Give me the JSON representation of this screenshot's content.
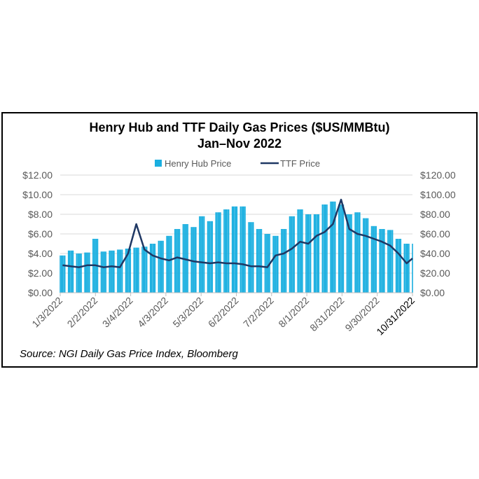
{
  "chart_data": {
    "type": "bar+line",
    "title": "Henry Hub and TTF Daily Gas Prices ($US/MMBtu)",
    "subtitle": "Jan–Nov 2022",
    "source": "Source: NGI Daily Gas Price Index, Bloomberg",
    "legend": {
      "placement": "top",
      "entries": [
        "Henry Hub Price",
        "TTF Price"
      ]
    },
    "colors": {
      "henry_hub": "#1aafe0",
      "ttf": "#1f3864",
      "grid": "#d9d9d9"
    },
    "left_axis": {
      "ylim": [
        0,
        12
      ],
      "ticks": [
        "$0.00",
        "$2.00",
        "$4.00",
        "$6.00",
        "$8.00",
        "$10.00",
        "$12.00"
      ]
    },
    "right_axis": {
      "ylim": [
        0,
        120
      ],
      "ticks": [
        "$0.00",
        "$20.00",
        "$40.00",
        "$60.00",
        "$80.00",
        "$100.00",
        "$120.00"
      ]
    },
    "x_ticks": [
      "1/3/2022",
      "2/2/2022",
      "3/4/2022",
      "4/3/2022",
      "5/3/2022",
      "6/2/2022",
      "7/2/2022",
      "8/1/2022",
      "8/31/2022",
      "9/30/2022",
      "10/31/2022"
    ],
    "grid": true,
    "weeks": [
      "2022-01-03",
      "2022-01-10",
      "2022-01-17",
      "2022-01-24",
      "2022-01-31",
      "2022-02-07",
      "2022-02-14",
      "2022-02-21",
      "2022-02-28",
      "2022-03-07",
      "2022-03-14",
      "2022-03-21",
      "2022-03-28",
      "2022-04-04",
      "2022-04-11",
      "2022-04-18",
      "2022-04-25",
      "2022-05-02",
      "2022-05-09",
      "2022-05-16",
      "2022-05-23",
      "2022-05-30",
      "2022-06-06",
      "2022-06-13",
      "2022-06-20",
      "2022-06-27",
      "2022-07-04",
      "2022-07-11",
      "2022-07-18",
      "2022-07-25",
      "2022-08-01",
      "2022-08-08",
      "2022-08-15",
      "2022-08-22",
      "2022-08-29",
      "2022-09-05",
      "2022-09-12",
      "2022-09-19",
      "2022-09-26",
      "2022-10-03",
      "2022-10-10",
      "2022-10-17",
      "2022-10-24",
      "2022-10-31"
    ],
    "series": [
      {
        "name": "Henry Hub Price",
        "axis": "left",
        "type": "bar",
        "values": [
          3.8,
          4.3,
          4.0,
          4.1,
          5.5,
          4.2,
          4.3,
          4.4,
          4.5,
          4.6,
          4.7,
          5.0,
          5.3,
          5.8,
          6.5,
          7.0,
          6.7,
          7.8,
          7.3,
          8.2,
          8.5,
          8.8,
          8.8,
          7.2,
          6.5,
          6.0,
          5.8,
          6.5,
          7.8,
          8.5,
          8.0,
          8.0,
          9.0,
          9.3,
          9.0,
          8.0,
          8.2,
          7.6,
          6.8,
          6.5,
          6.4,
          5.5,
          5.0,
          5.0
        ]
      },
      {
        "name": "TTF Price",
        "axis": "right",
        "type": "line",
        "values": [
          28,
          27,
          26,
          28,
          28,
          26,
          27,
          26,
          40,
          70,
          44,
          38,
          35,
          33,
          36,
          34,
          32,
          31,
          30,
          31,
          30,
          30,
          29,
          27,
          27,
          26,
          38,
          40,
          45,
          52,
          50,
          58,
          62,
          70,
          95,
          65,
          60,
          58,
          55,
          52,
          48,
          40,
          30,
          35
        ]
      }
    ]
  }
}
